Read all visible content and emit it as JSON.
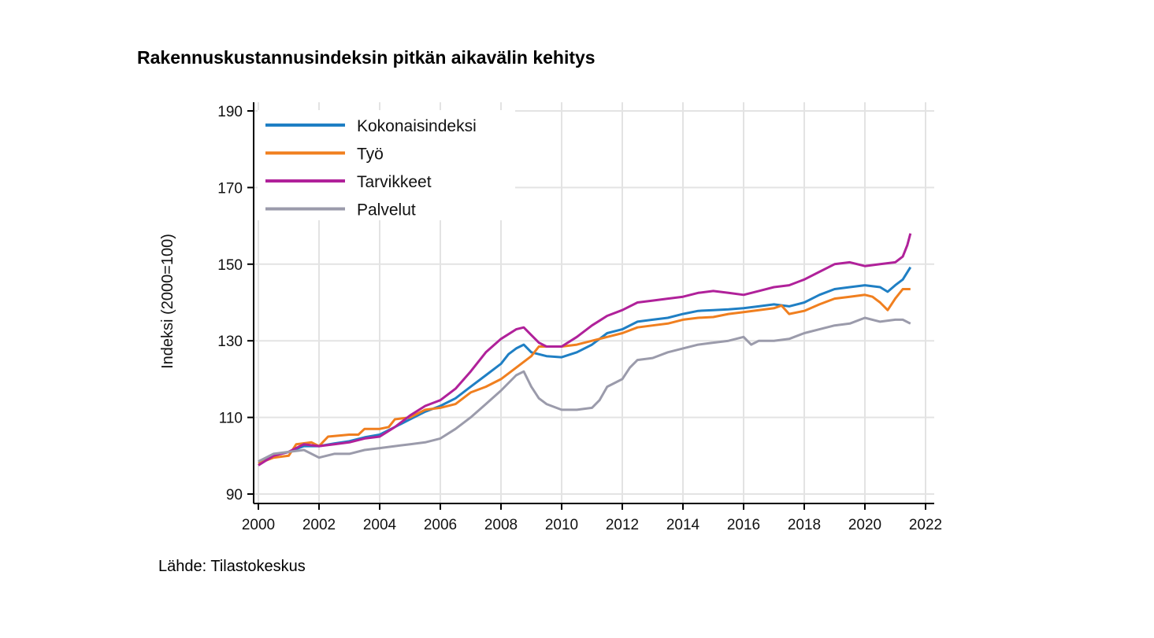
{
  "title": "Rakennuskustannusindeksin pitkän aikavälin kehitys",
  "source": "Lähde: Tilastokeskus",
  "chart_data": {
    "type": "line",
    "title": "Rakennuskustannusindeksin pitkän aikavälin kehitys",
    "xlabel": "",
    "ylabel": "Indeksi (2000=100)",
    "xlim": [
      2000,
      2022
    ],
    "ylim": [
      88,
      192
    ],
    "xticks": [
      2000,
      2002,
      2004,
      2006,
      2008,
      2010,
      2012,
      2014,
      2016,
      2018,
      2020,
      2022
    ],
    "yticks": [
      90,
      110,
      130,
      150,
      170,
      190
    ],
    "grid": true,
    "legend_position": "top-left",
    "series": [
      {
        "name": "Kokonaisindeksi",
        "color": "#1f7fc4",
        "points": [
          [
            2000.0,
            98.5
          ],
          [
            2000.5,
            100.0
          ],
          [
            2001.0,
            101.0
          ],
          [
            2001.5,
            102.5
          ],
          [
            2002.0,
            102.5
          ],
          [
            2002.5,
            103.2
          ],
          [
            2003.0,
            103.8
          ],
          [
            2003.5,
            104.8
          ],
          [
            2004.0,
            105.5
          ],
          [
            2004.5,
            107.5
          ],
          [
            2005.0,
            109.5
          ],
          [
            2005.5,
            111.5
          ],
          [
            2006.0,
            113.0
          ],
          [
            2006.5,
            115.0
          ],
          [
            2007.0,
            118.0
          ],
          [
            2007.5,
            121.0
          ],
          [
            2008.0,
            124.0
          ],
          [
            2008.25,
            126.5
          ],
          [
            2008.5,
            128.0
          ],
          [
            2008.75,
            129.0
          ],
          [
            2009.0,
            127.0
          ],
          [
            2009.5,
            126.0
          ],
          [
            2010.0,
            125.7
          ],
          [
            2010.5,
            127.0
          ],
          [
            2011.0,
            129.0
          ],
          [
            2011.5,
            132.0
          ],
          [
            2012.0,
            133.0
          ],
          [
            2012.5,
            135.0
          ],
          [
            2013.0,
            135.5
          ],
          [
            2013.5,
            136.0
          ],
          [
            2014.0,
            137.0
          ],
          [
            2014.5,
            137.8
          ],
          [
            2015.0,
            138.0
          ],
          [
            2015.5,
            138.2
          ],
          [
            2016.0,
            138.5
          ],
          [
            2016.5,
            139.0
          ],
          [
            2017.0,
            139.5
          ],
          [
            2017.5,
            139.0
          ],
          [
            2018.0,
            140.0
          ],
          [
            2018.5,
            142.0
          ],
          [
            2019.0,
            143.5
          ],
          [
            2019.5,
            144.0
          ],
          [
            2020.0,
            144.5
          ],
          [
            2020.5,
            144.0
          ],
          [
            2020.75,
            142.8
          ],
          [
            2021.0,
            144.5
          ],
          [
            2021.25,
            146.0
          ],
          [
            2021.5,
            149.2
          ]
        ]
      },
      {
        "name": "Työ",
        "color": "#f07f1f",
        "points": [
          [
            2000.0,
            98.0
          ],
          [
            2000.5,
            99.5
          ],
          [
            2001.0,
            100.0
          ],
          [
            2001.25,
            103.0
          ],
          [
            2001.75,
            103.5
          ],
          [
            2002.0,
            102.5
          ],
          [
            2002.3,
            105.0
          ],
          [
            2003.0,
            105.5
          ],
          [
            2003.3,
            105.5
          ],
          [
            2003.5,
            107.0
          ],
          [
            2004.0,
            107.0
          ],
          [
            2004.3,
            107.5
          ],
          [
            2004.5,
            109.5
          ],
          [
            2005.0,
            110.0
          ],
          [
            2005.5,
            112.0
          ],
          [
            2006.0,
            112.5
          ],
          [
            2006.5,
            113.5
          ],
          [
            2007.0,
            116.5
          ],
          [
            2007.5,
            118.0
          ],
          [
            2008.0,
            120.0
          ],
          [
            2008.5,
            123.0
          ],
          [
            2009.0,
            126.0
          ],
          [
            2009.25,
            128.5
          ],
          [
            2010.0,
            128.5
          ],
          [
            2010.5,
            129.0
          ],
          [
            2011.0,
            130.0
          ],
          [
            2011.5,
            131.0
          ],
          [
            2012.0,
            132.0
          ],
          [
            2012.5,
            133.5
          ],
          [
            2013.0,
            134.0
          ],
          [
            2013.5,
            134.5
          ],
          [
            2014.0,
            135.5
          ],
          [
            2014.5,
            136.0
          ],
          [
            2015.0,
            136.2
          ],
          [
            2015.5,
            137.0
          ],
          [
            2016.0,
            137.5
          ],
          [
            2016.5,
            138.0
          ],
          [
            2017.0,
            138.5
          ],
          [
            2017.25,
            139.2
          ],
          [
            2017.5,
            137.0
          ],
          [
            2018.0,
            137.8
          ],
          [
            2018.5,
            139.5
          ],
          [
            2019.0,
            141.0
          ],
          [
            2019.5,
            141.5
          ],
          [
            2020.0,
            142.0
          ],
          [
            2020.25,
            141.5
          ],
          [
            2020.5,
            140.0
          ],
          [
            2020.75,
            138.0
          ],
          [
            2021.0,
            141.0
          ],
          [
            2021.25,
            143.5
          ],
          [
            2021.5,
            143.5
          ]
        ]
      },
      {
        "name": "Tarvikkeet",
        "color": "#b0219a",
        "points": [
          [
            2000.0,
            97.5
          ],
          [
            2000.5,
            100.0
          ],
          [
            2001.0,
            101.0
          ],
          [
            2001.5,
            103.0
          ],
          [
            2002.0,
            102.5
          ],
          [
            2002.5,
            103.0
          ],
          [
            2003.0,
            103.5
          ],
          [
            2003.5,
            104.5
          ],
          [
            2004.0,
            105.0
          ],
          [
            2004.5,
            107.5
          ],
          [
            2005.0,
            110.5
          ],
          [
            2005.5,
            113.0
          ],
          [
            2006.0,
            114.5
          ],
          [
            2006.5,
            117.5
          ],
          [
            2007.0,
            122.0
          ],
          [
            2007.5,
            127.0
          ],
          [
            2008.0,
            130.5
          ],
          [
            2008.5,
            133.0
          ],
          [
            2008.75,
            133.5
          ],
          [
            2009.0,
            131.5
          ],
          [
            2009.25,
            129.5
          ],
          [
            2009.5,
            128.5
          ],
          [
            2010.0,
            128.5
          ],
          [
            2010.5,
            131.0
          ],
          [
            2011.0,
            134.0
          ],
          [
            2011.5,
            136.5
          ],
          [
            2012.0,
            138.0
          ],
          [
            2012.5,
            140.0
          ],
          [
            2013.0,
            140.5
          ],
          [
            2013.5,
            141.0
          ],
          [
            2014.0,
            141.5
          ],
          [
            2014.5,
            142.5
          ],
          [
            2015.0,
            143.0
          ],
          [
            2015.5,
            142.5
          ],
          [
            2016.0,
            142.0
          ],
          [
            2016.5,
            143.0
          ],
          [
            2017.0,
            144.0
          ],
          [
            2017.5,
            144.5
          ],
          [
            2018.0,
            146.0
          ],
          [
            2018.5,
            148.0
          ],
          [
            2019.0,
            150.0
          ],
          [
            2019.5,
            150.5
          ],
          [
            2020.0,
            149.5
          ],
          [
            2020.5,
            150.0
          ],
          [
            2021.0,
            150.5
          ],
          [
            2021.25,
            152.0
          ],
          [
            2021.4,
            155.0
          ],
          [
            2021.5,
            158.0
          ]
        ]
      },
      {
        "name": "Palvelut",
        "color": "#9b9bab",
        "points": [
          [
            2000.0,
            98.5
          ],
          [
            2000.5,
            100.5
          ],
          [
            2001.0,
            101.0
          ],
          [
            2001.5,
            101.5
          ],
          [
            2002.0,
            99.5
          ],
          [
            2002.5,
            100.5
          ],
          [
            2003.0,
            100.5
          ],
          [
            2003.5,
            101.5
          ],
          [
            2004.0,
            102.0
          ],
          [
            2004.5,
            102.5
          ],
          [
            2005.0,
            103.0
          ],
          [
            2005.5,
            103.5
          ],
          [
            2006.0,
            104.5
          ],
          [
            2006.5,
            107.0
          ],
          [
            2007.0,
            110.0
          ],
          [
            2007.5,
            113.5
          ],
          [
            2008.0,
            117.0
          ],
          [
            2008.5,
            121.0
          ],
          [
            2008.75,
            122.0
          ],
          [
            2009.0,
            118.0
          ],
          [
            2009.25,
            115.0
          ],
          [
            2009.5,
            113.5
          ],
          [
            2010.0,
            112.0
          ],
          [
            2010.5,
            112.0
          ],
          [
            2011.0,
            112.5
          ],
          [
            2011.25,
            114.5
          ],
          [
            2011.5,
            118.0
          ],
          [
            2012.0,
            120.0
          ],
          [
            2012.25,
            123.0
          ],
          [
            2012.5,
            125.0
          ],
          [
            2013.0,
            125.5
          ],
          [
            2013.5,
            127.0
          ],
          [
            2014.0,
            128.0
          ],
          [
            2014.5,
            129.0
          ],
          [
            2015.0,
            129.5
          ],
          [
            2015.5,
            130.0
          ],
          [
            2016.0,
            131.0
          ],
          [
            2016.25,
            129.0
          ],
          [
            2016.5,
            130.0
          ],
          [
            2017.0,
            130.0
          ],
          [
            2017.5,
            130.5
          ],
          [
            2018.0,
            132.0
          ],
          [
            2018.5,
            133.0
          ],
          [
            2019.0,
            134.0
          ],
          [
            2019.5,
            134.5
          ],
          [
            2020.0,
            136.0
          ],
          [
            2020.5,
            135.0
          ],
          [
            2021.0,
            135.5
          ],
          [
            2021.25,
            135.5
          ],
          [
            2021.5,
            134.5
          ]
        ]
      }
    ]
  }
}
